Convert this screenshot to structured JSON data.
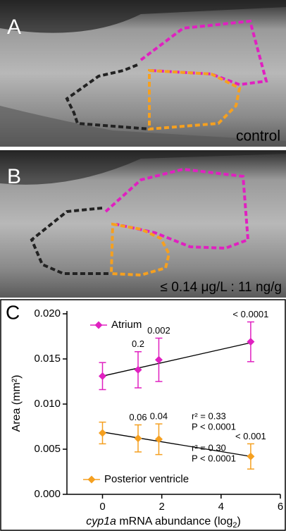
{
  "panel_a": {
    "label": "A",
    "caption": "control"
  },
  "panel_b": {
    "label": "B",
    "caption": "≤ 0.14 μg/L : 11 ng/g"
  },
  "panel_c": {
    "label": "C"
  },
  "chart_data": {
    "type": "scatter",
    "y_label": "Area (mm²)",
    "x_label": {
      "gene": "cyp1a",
      "text": " mRNA abundance (log",
      "sub": "2",
      "end": ")"
    },
    "xlim": [
      -1.2,
      6
    ],
    "xticks": [
      0,
      2,
      4,
      6
    ],
    "ylim": [
      0,
      0.02
    ],
    "yticks": [
      {
        "value": 0,
        "label": "0.000"
      },
      {
        "value": 0.005,
        "label": "0.005"
      },
      {
        "value": 0.01,
        "label": "0.010"
      },
      {
        "value": 0.015,
        "label": "0.015"
      },
      {
        "value": 0.02,
        "label": "0.020"
      }
    ],
    "series": [
      {
        "name": "Atrium",
        "color": "#e020c0",
        "legend_loc": "upper left",
        "x": [
          0,
          1.2,
          1.9,
          5.0
        ],
        "values": [
          0.0131,
          0.0138,
          0.0149,
          0.0169
        ],
        "errors": [
          0.0015,
          0.002,
          0.0024,
          0.0022
        ],
        "p_values": [
          null,
          "0.2",
          "0.002",
          "< 0.0001"
        ],
        "fit": {
          "x": [
            0,
            5
          ],
          "y": [
            0.0131,
            0.0168
          ]
        },
        "stats": [
          "r² = 0.33",
          "P < 0.0001"
        ]
      },
      {
        "name": "Posterior ventricle",
        "color": "#f5a020",
        "legend_loc": "lower left",
        "x": [
          0,
          1.2,
          1.9,
          5.0
        ],
        "values": [
          0.0068,
          0.0062,
          0.0061,
          0.0042
        ],
        "errors": [
          0.0012,
          0.0015,
          0.0017,
          0.0014
        ],
        "p_values": [
          null,
          "0.06",
          "0.04",
          "< 0.001"
        ],
        "fit": {
          "x": [
            0,
            5
          ],
          "y": [
            0.0069,
            0.0042
          ]
        },
        "stats": [
          "r² = 0.30",
          "P < 0.0001"
        ]
      }
    ]
  }
}
